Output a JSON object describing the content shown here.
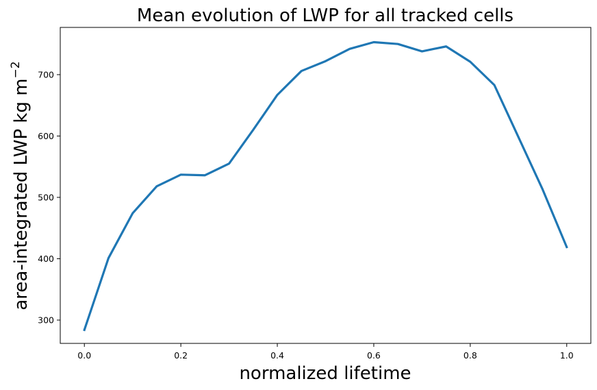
{
  "chart_data": {
    "type": "line",
    "title": "Mean evolution of LWP for all tracked cells",
    "xlabel": "normalized lifetime",
    "ylabel": "area-integrated LWP kg m",
    "ylabel_sup": "−2",
    "xlim": [
      -0.05,
      1.05
    ],
    "ylim": [
      262,
      777
    ],
    "xticks": [
      0.0,
      0.2,
      0.4,
      0.6,
      0.8,
      1.0
    ],
    "xtick_labels": [
      "0.0",
      "0.2",
      "0.4",
      "0.6",
      "0.8",
      "1.0"
    ],
    "yticks": [
      300,
      400,
      500,
      600,
      700
    ],
    "ytick_labels": [
      "300",
      "400",
      "500",
      "600",
      "700"
    ],
    "grid": false,
    "line_color": "#1f77b4",
    "series": [
      {
        "x": [
          0.0,
          0.05,
          0.1,
          0.15,
          0.2,
          0.25,
          0.3,
          0.35,
          0.4,
          0.45,
          0.5,
          0.55,
          0.6,
          0.65,
          0.7,
          0.75,
          0.8,
          0.85,
          0.9,
          0.95,
          1.0
        ],
        "values": [
          284,
          401,
          474,
          518,
          537,
          536,
          555,
          610,
          667,
          706,
          722,
          742,
          753,
          750,
          738,
          746,
          721,
          683,
          598,
          513,
          419
        ]
      }
    ]
  }
}
